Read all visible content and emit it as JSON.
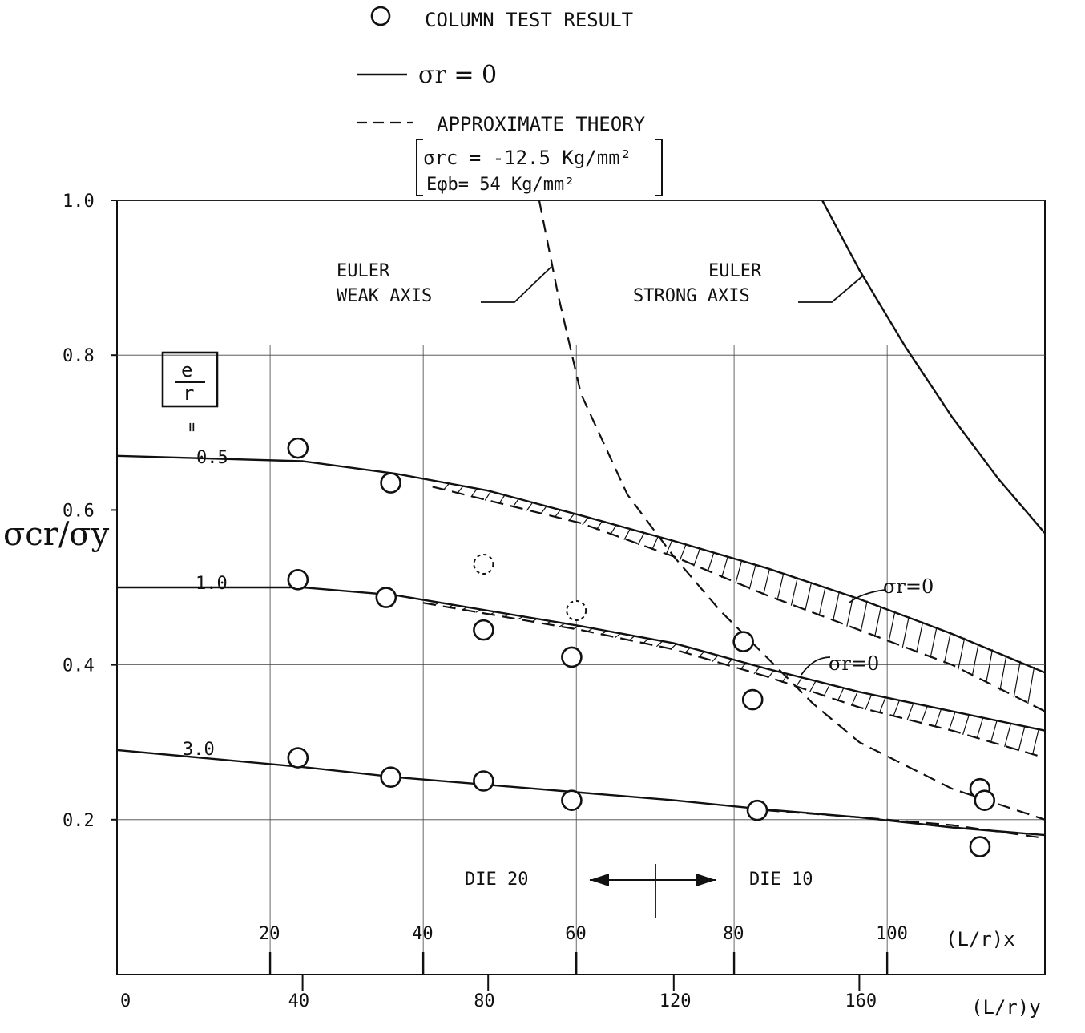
{
  "chart_data": {
    "type": "line",
    "title": "",
    "legend": [
      {
        "symbol": "circle",
        "label": "COLUMN TEST RESULT"
      },
      {
        "symbol": "solid-line",
        "label": "σr = 0"
      },
      {
        "symbol": "dashed-line",
        "label": "APPROXIMATE THEORY"
      }
    ],
    "legend_note": [
      "σrc = -12.5 Kg/mm²",
      "Eφb= 54  Kg/mm²"
    ],
    "ylabel": "σcr/σy",
    "xlabel_bottom": "(L/r)y",
    "xlabel_inner": "(L/r)x",
    "ylim": [
      0,
      1.0
    ],
    "xlim": [
      0,
      200
    ],
    "y_ticks": [
      "0.2",
      "0.4",
      "0.6",
      "0.8",
      "1.0"
    ],
    "x_ticks_bottom": [
      "0",
      "40",
      "80",
      "120",
      "160"
    ],
    "x_ticks_inner": [
      {
        "label": "20",
        "y_value": 33
      },
      {
        "label": "40",
        "y_value": 66
      },
      {
        "label": "60",
        "y_value": 99
      },
      {
        "label": "80",
        "y_value": 133
      },
      {
        "label": "100",
        "y_value": 166
      }
    ],
    "e_over_r_label": {
      "numerator": "e",
      "denominator": "r"
    },
    "equals_mark": "=",
    "series": [
      {
        "name": "0.5",
        "solid": [
          [
            0,
            0.67
          ],
          [
            40,
            0.663
          ],
          [
            60,
            0.647
          ],
          [
            80,
            0.625
          ],
          [
            100,
            0.593
          ],
          [
            120,
            0.56
          ],
          [
            140,
            0.525
          ],
          [
            160,
            0.485
          ],
          [
            180,
            0.44
          ],
          [
            200,
            0.39
          ]
        ],
        "dashed": [
          [
            68,
            0.63
          ],
          [
            100,
            0.583
          ],
          [
            120,
            0.54
          ],
          [
            140,
            0.49
          ],
          [
            160,
            0.445
          ],
          [
            180,
            0.4
          ],
          [
            200,
            0.34
          ]
        ]
      },
      {
        "name": "1.0",
        "solid": [
          [
            0,
            0.5
          ],
          [
            40,
            0.5
          ],
          [
            60,
            0.49
          ],
          [
            80,
            0.47
          ],
          [
            100,
            0.45
          ],
          [
            120,
            0.428
          ],
          [
            140,
            0.395
          ],
          [
            160,
            0.365
          ],
          [
            180,
            0.34
          ],
          [
            200,
            0.315
          ]
        ],
        "dashed": [
          [
            66,
            0.48
          ],
          [
            100,
            0.445
          ],
          [
            120,
            0.42
          ],
          [
            140,
            0.385
          ],
          [
            160,
            0.345
          ],
          [
            180,
            0.315
          ],
          [
            200,
            0.28
          ]
        ]
      },
      {
        "name": "3.0",
        "solid": [
          [
            0,
            0.29
          ],
          [
            40,
            0.268
          ],
          [
            60,
            0.255
          ],
          [
            80,
            0.245
          ],
          [
            100,
            0.235
          ],
          [
            120,
            0.225
          ],
          [
            140,
            0.213
          ],
          [
            160,
            0.203
          ],
          [
            180,
            0.19
          ],
          [
            200,
            0.18
          ]
        ],
        "dashed": [
          [
            140,
            0.212
          ],
          [
            160,
            0.203
          ],
          [
            180,
            0.193
          ],
          [
            200,
            0.176
          ]
        ]
      }
    ],
    "euler_weak": {
      "label": [
        "EULER",
        "WEAK AXIS"
      ],
      "points": [
        [
          91,
          1.0
        ],
        [
          95,
          0.88
        ],
        [
          100,
          0.75
        ],
        [
          110,
          0.62
        ],
        [
          120,
          0.54
        ],
        [
          130,
          0.47
        ],
        [
          140,
          0.41
        ],
        [
          150,
          0.35
        ],
        [
          160,
          0.3
        ],
        [
          170,
          0.27
        ],
        [
          180,
          0.24
        ],
        [
          190,
          0.22
        ],
        [
          200,
          0.2
        ]
      ]
    },
    "euler_strong": {
      "label": [
        "EULER",
        "STRONG AXIS"
      ],
      "points": [
        [
          152,
          1.0
        ],
        [
          160,
          0.91
        ],
        [
          170,
          0.81
        ],
        [
          180,
          0.72
        ],
        [
          190,
          0.64
        ],
        [
          200,
          0.57
        ]
      ]
    },
    "sr0_annotations": [
      "σr=0",
      "σr=0"
    ],
    "test_points": [
      {
        "x": 39,
        "y": 0.68
      },
      {
        "x": 59,
        "y": 0.635
      },
      {
        "x": 39,
        "y": 0.51
      },
      {
        "x": 58,
        "y": 0.487
      },
      {
        "x": 79,
        "y": 0.445
      },
      {
        "x": 98,
        "y": 0.41
      },
      {
        "x": 135,
        "y": 0.43
      },
      {
        "x": 137,
        "y": 0.355
      },
      {
        "x": 39,
        "y": 0.28
      },
      {
        "x": 59,
        "y": 0.255
      },
      {
        "x": 79,
        "y": 0.25
      },
      {
        "x": 98,
        "y": 0.225
      },
      {
        "x": 138,
        "y": 0.212
      },
      {
        "x": 186,
        "y": 0.24
      },
      {
        "x": 187,
        "y": 0.225
      },
      {
        "x": 186,
        "y": 0.165
      }
    ],
    "test_points_dashed": [
      {
        "x": 79,
        "y": 0.53
      },
      {
        "x": 99,
        "y": 0.47
      }
    ],
    "die_labels": [
      "DIE 20",
      "DIE 10"
    ]
  }
}
